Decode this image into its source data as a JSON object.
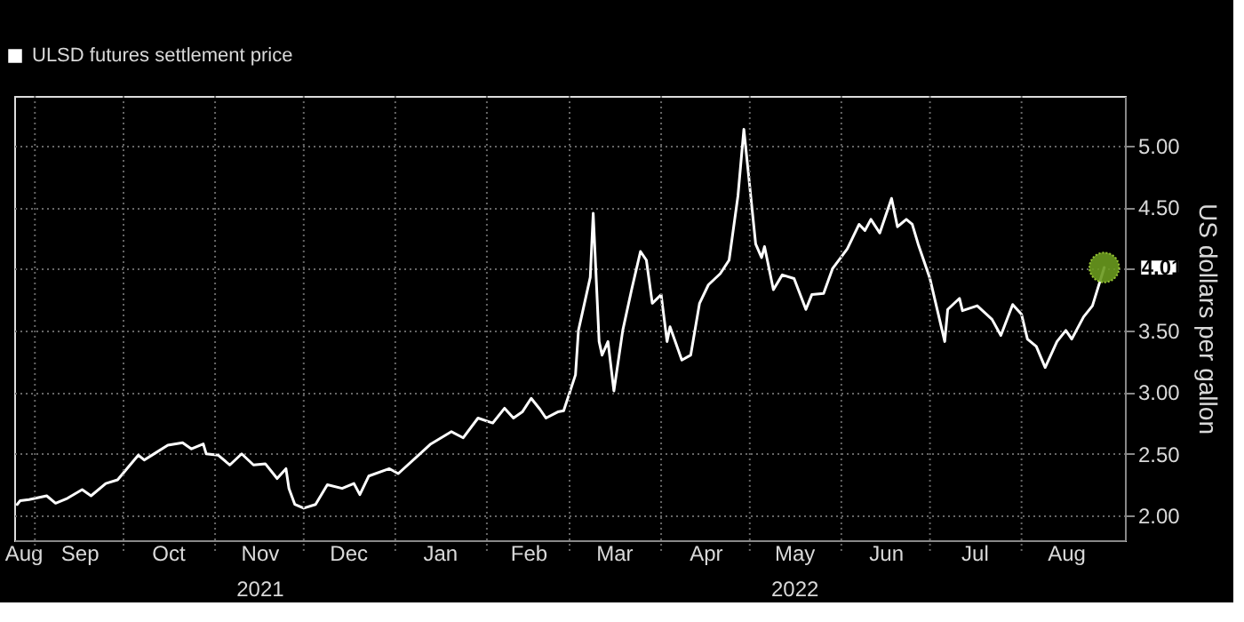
{
  "chart_data": {
    "type": "line",
    "ylabel": "US dollars per gallon",
    "legend": "top left",
    "grid": true,
    "marker": "none",
    "line_style": "solid",
    "xlim": [
      "2021-08-25",
      "2022-09-05"
    ],
    "ylim": [
      1.8,
      5.4
    ],
    "yticks": [
      {
        "value": 2,
        "label": "2.00"
      },
      {
        "value": 2.5,
        "label": "2.50"
      },
      {
        "value": 3,
        "label": "3.00"
      },
      {
        "value": 3.5,
        "label": "3.50"
      },
      {
        "value": 4,
        "label": null
      },
      {
        "value": 4.5,
        "label": "4.50"
      },
      {
        "value": 5,
        "label": "5.00"
      }
    ],
    "xticks": [
      {
        "value": "2021-08-28",
        "label": "Aug"
      },
      {
        "value": "2021-09-01",
        "label": null
      },
      {
        "value": "2021-09-16",
        "label": "Sep"
      },
      {
        "value": "2021-10-01",
        "label": null
      },
      {
        "value": "2021-10-16",
        "label": "Oct"
      },
      {
        "value": "2021-11-01",
        "label": null
      },
      {
        "value": "2021-11-16",
        "label": "Nov\n2021"
      },
      {
        "value": "2021-12-01",
        "label": null
      },
      {
        "value": "2021-12-16",
        "label": "Dec"
      },
      {
        "value": "2022-01-01",
        "label": null
      },
      {
        "value": "2022-01-16",
        "label": "Jan"
      },
      {
        "value": "2022-02-01",
        "label": null
      },
      {
        "value": "2022-02-15",
        "label": "Feb"
      },
      {
        "value": "2022-03-01",
        "label": null
      },
      {
        "value": "2022-03-16",
        "label": "Mar"
      },
      {
        "value": "2022-04-01",
        "label": null
      },
      {
        "value": "2022-04-16",
        "label": "Apr"
      },
      {
        "value": "2022-05-01",
        "label": null
      },
      {
        "value": "2022-05-16",
        "label": "May\n2022"
      },
      {
        "value": "2022-06-01",
        "label": null
      },
      {
        "value": "2022-06-16",
        "label": "Jun"
      },
      {
        "value": "2022-07-01",
        "label": null
      },
      {
        "value": "2022-07-16",
        "label": "Jul"
      },
      {
        "value": "2022-08-01",
        "label": null
      },
      {
        "value": "2022-08-16",
        "label": "Aug"
      }
    ],
    "annotations": [
      {
        "text": "4.01",
        "x": "2022-08-29",
        "y": 4.01
      }
    ],
    "series": [
      {
        "name": "ULSD futures settlement price",
        "color": "#ffffff",
        "x": [
          "2021-08-26",
          "2021-08-27",
          "2021-08-30",
          "2021-09-05",
          "2021-09-08",
          "2021-09-12",
          "2021-09-17",
          "2021-09-20",
          "2021-09-25",
          "2021-09-29",
          "2021-10-06",
          "2021-10-08",
          "2021-10-12",
          "2021-10-16",
          "2021-10-21",
          "2021-10-24",
          "2021-10-28",
          "2021-10-29",
          "2021-11-02",
          "2021-11-06",
          "2021-11-10",
          "2021-11-14",
          "2021-11-18",
          "2021-11-22",
          "2021-11-25",
          "2021-11-26",
          "2021-11-28",
          "2021-12-01",
          "2021-12-05",
          "2021-12-09",
          "2021-12-14",
          "2021-12-18",
          "2021-12-20",
          "2021-12-23",
          "2021-12-30",
          "2022-01-02",
          "2022-01-08",
          "2022-01-13",
          "2022-01-20",
          "2022-01-24",
          "2022-01-29",
          "2022-02-03",
          "2022-02-07",
          "2022-02-10",
          "2022-02-13",
          "2022-02-16",
          "2022-02-19",
          "2022-02-21",
          "2022-02-25",
          "2022-02-27",
          "2022-03-03",
          "2022-03-04",
          "2022-03-08",
          "2022-03-09",
          "2022-03-11",
          "2022-03-12",
          "2022-03-14",
          "2022-03-16",
          "2022-03-19",
          "2022-03-22",
          "2022-03-25",
          "2022-03-27",
          "2022-03-29",
          "2022-04-01",
          "2022-04-03",
          "2022-04-04",
          "2022-04-08",
          "2022-04-11",
          "2022-04-14",
          "2022-04-17",
          "2022-04-21",
          "2022-04-24",
          "2022-04-27",
          "2022-04-29",
          "2022-05-03",
          "2022-05-05",
          "2022-05-06",
          "2022-05-09",
          "2022-05-12",
          "2022-05-16",
          "2022-05-20",
          "2022-05-22",
          "2022-05-26",
          "2022-05-29",
          "2022-06-03",
          "2022-06-07",
          "2022-06-09",
          "2022-06-11",
          "2022-06-14",
          "2022-06-18",
          "2022-06-20",
          "2022-06-23",
          "2022-06-25",
          "2022-06-27",
          "2022-07-01",
          "2022-07-06",
          "2022-07-07",
          "2022-07-11",
          "2022-07-12",
          "2022-07-17",
          "2022-07-22",
          "2022-07-25",
          "2022-07-29",
          "2022-08-01",
          "2022-08-03",
          "2022-08-06",
          "2022-08-09",
          "2022-08-13",
          "2022-08-16",
          "2022-08-18",
          "2022-08-22",
          "2022-08-25",
          "2022-08-29"
        ],
        "values": [
          2.09,
          2.12,
          2.13,
          2.16,
          2.1,
          2.14,
          2.21,
          2.16,
          2.26,
          2.29,
          2.49,
          2.45,
          2.51,
          2.57,
          2.59,
          2.54,
          2.58,
          2.5,
          2.49,
          2.41,
          2.5,
          2.41,
          2.42,
          2.3,
          2.38,
          2.22,
          2.09,
          2.06,
          2.09,
          2.25,
          2.22,
          2.26,
          2.17,
          2.32,
          2.38,
          2.34,
          2.47,
          2.58,
          2.68,
          2.63,
          2.79,
          2.75,
          2.87,
          2.79,
          2.84,
          2.95,
          2.86,
          2.79,
          2.84,
          2.85,
          3.14,
          3.5,
          3.93,
          4.45,
          3.41,
          3.3,
          3.41,
          3.01,
          3.5,
          3.83,
          4.14,
          4.07,
          3.72,
          3.79,
          3.41,
          3.53,
          3.26,
          3.3,
          3.72,
          3.87,
          3.96,
          4.07,
          4.59,
          5.13,
          4.2,
          4.09,
          4.18,
          3.83,
          3.95,
          3.92,
          3.67,
          3.79,
          3.8,
          4.0,
          4.16,
          4.36,
          4.31,
          4.4,
          4.29,
          4.57,
          4.34,
          4.4,
          4.36,
          4.2,
          3.92,
          3.41,
          3.67,
          3.76,
          3.66,
          3.7,
          3.59,
          3.46,
          3.71,
          3.63,
          3.43,
          3.37,
          3.2,
          3.41,
          3.5,
          3.43,
          3.61,
          3.7,
          4.01
        ]
      }
    ]
  }
}
